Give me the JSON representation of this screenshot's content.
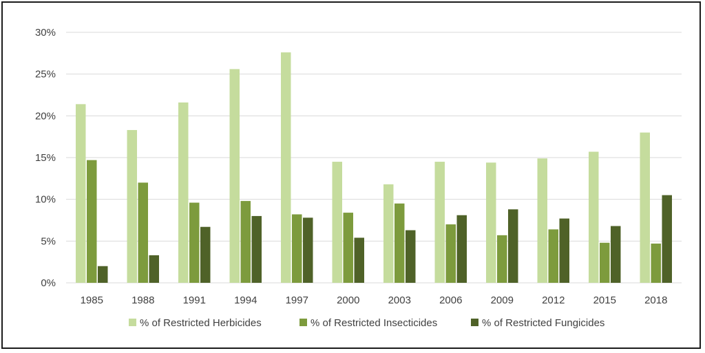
{
  "chart_data": {
    "type": "bar",
    "categories": [
      "1985",
      "1988",
      "1991",
      "1994",
      "1997",
      "2000",
      "2003",
      "2006",
      "2009",
      "2012",
      "2015",
      "2018"
    ],
    "series": [
      {
        "name": "% of Restricted Herbicides",
        "color": "#c5dc9d",
        "values": [
          21.4,
          18.3,
          21.6,
          25.6,
          27.6,
          14.5,
          11.8,
          14.5,
          14.4,
          14.9,
          15.7,
          18.0
        ]
      },
      {
        "name": "% of Restricted Insecticides",
        "color": "#7d9b3d",
        "values": [
          14.7,
          12.0,
          9.6,
          9.8,
          8.2,
          8.4,
          9.5,
          7.0,
          5.7,
          6.4,
          4.8,
          4.7
        ]
      },
      {
        "name": "% of Restricted Fungicides",
        "color": "#4f6228",
        "values": [
          2.0,
          3.3,
          6.7,
          8.0,
          7.8,
          5.4,
          6.3,
          8.1,
          8.8,
          7.7,
          6.8,
          10.5
        ]
      }
    ],
    "ylim": [
      0,
      30
    ],
    "yticks": [
      "0%",
      "5%",
      "10%",
      "15%",
      "20%",
      "25%",
      "30%"
    ],
    "ytick_values": [
      0,
      5,
      10,
      15,
      20,
      25,
      30
    ],
    "grid": true,
    "legend_position": "bottom",
    "gridline_color": "#d9d9d9"
  }
}
